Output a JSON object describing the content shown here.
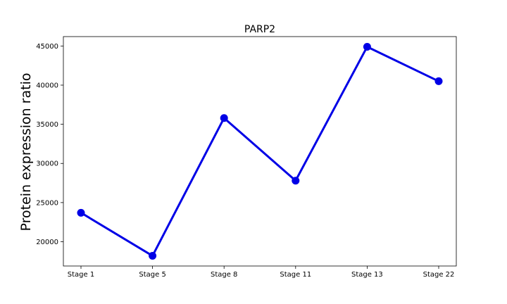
{
  "chart_data": {
    "type": "line",
    "title": "PARP2",
    "xlabel": "",
    "ylabel": "Protein expression ratio",
    "categories": [
      "Stage 1",
      "Stage 5",
      "Stage 8",
      "Stage 11",
      "Stage 13",
      "Stage 22"
    ],
    "series": [
      {
        "values": [
          23700,
          18200,
          35800,
          27800,
          44900,
          40500
        ],
        "color": "#0000e6"
      }
    ],
    "ylim": [
      16900,
      46200
    ],
    "yticks": [
      20000,
      25000,
      30000,
      35000,
      40000,
      45000
    ],
    "grid": false,
    "legend": "none"
  }
}
